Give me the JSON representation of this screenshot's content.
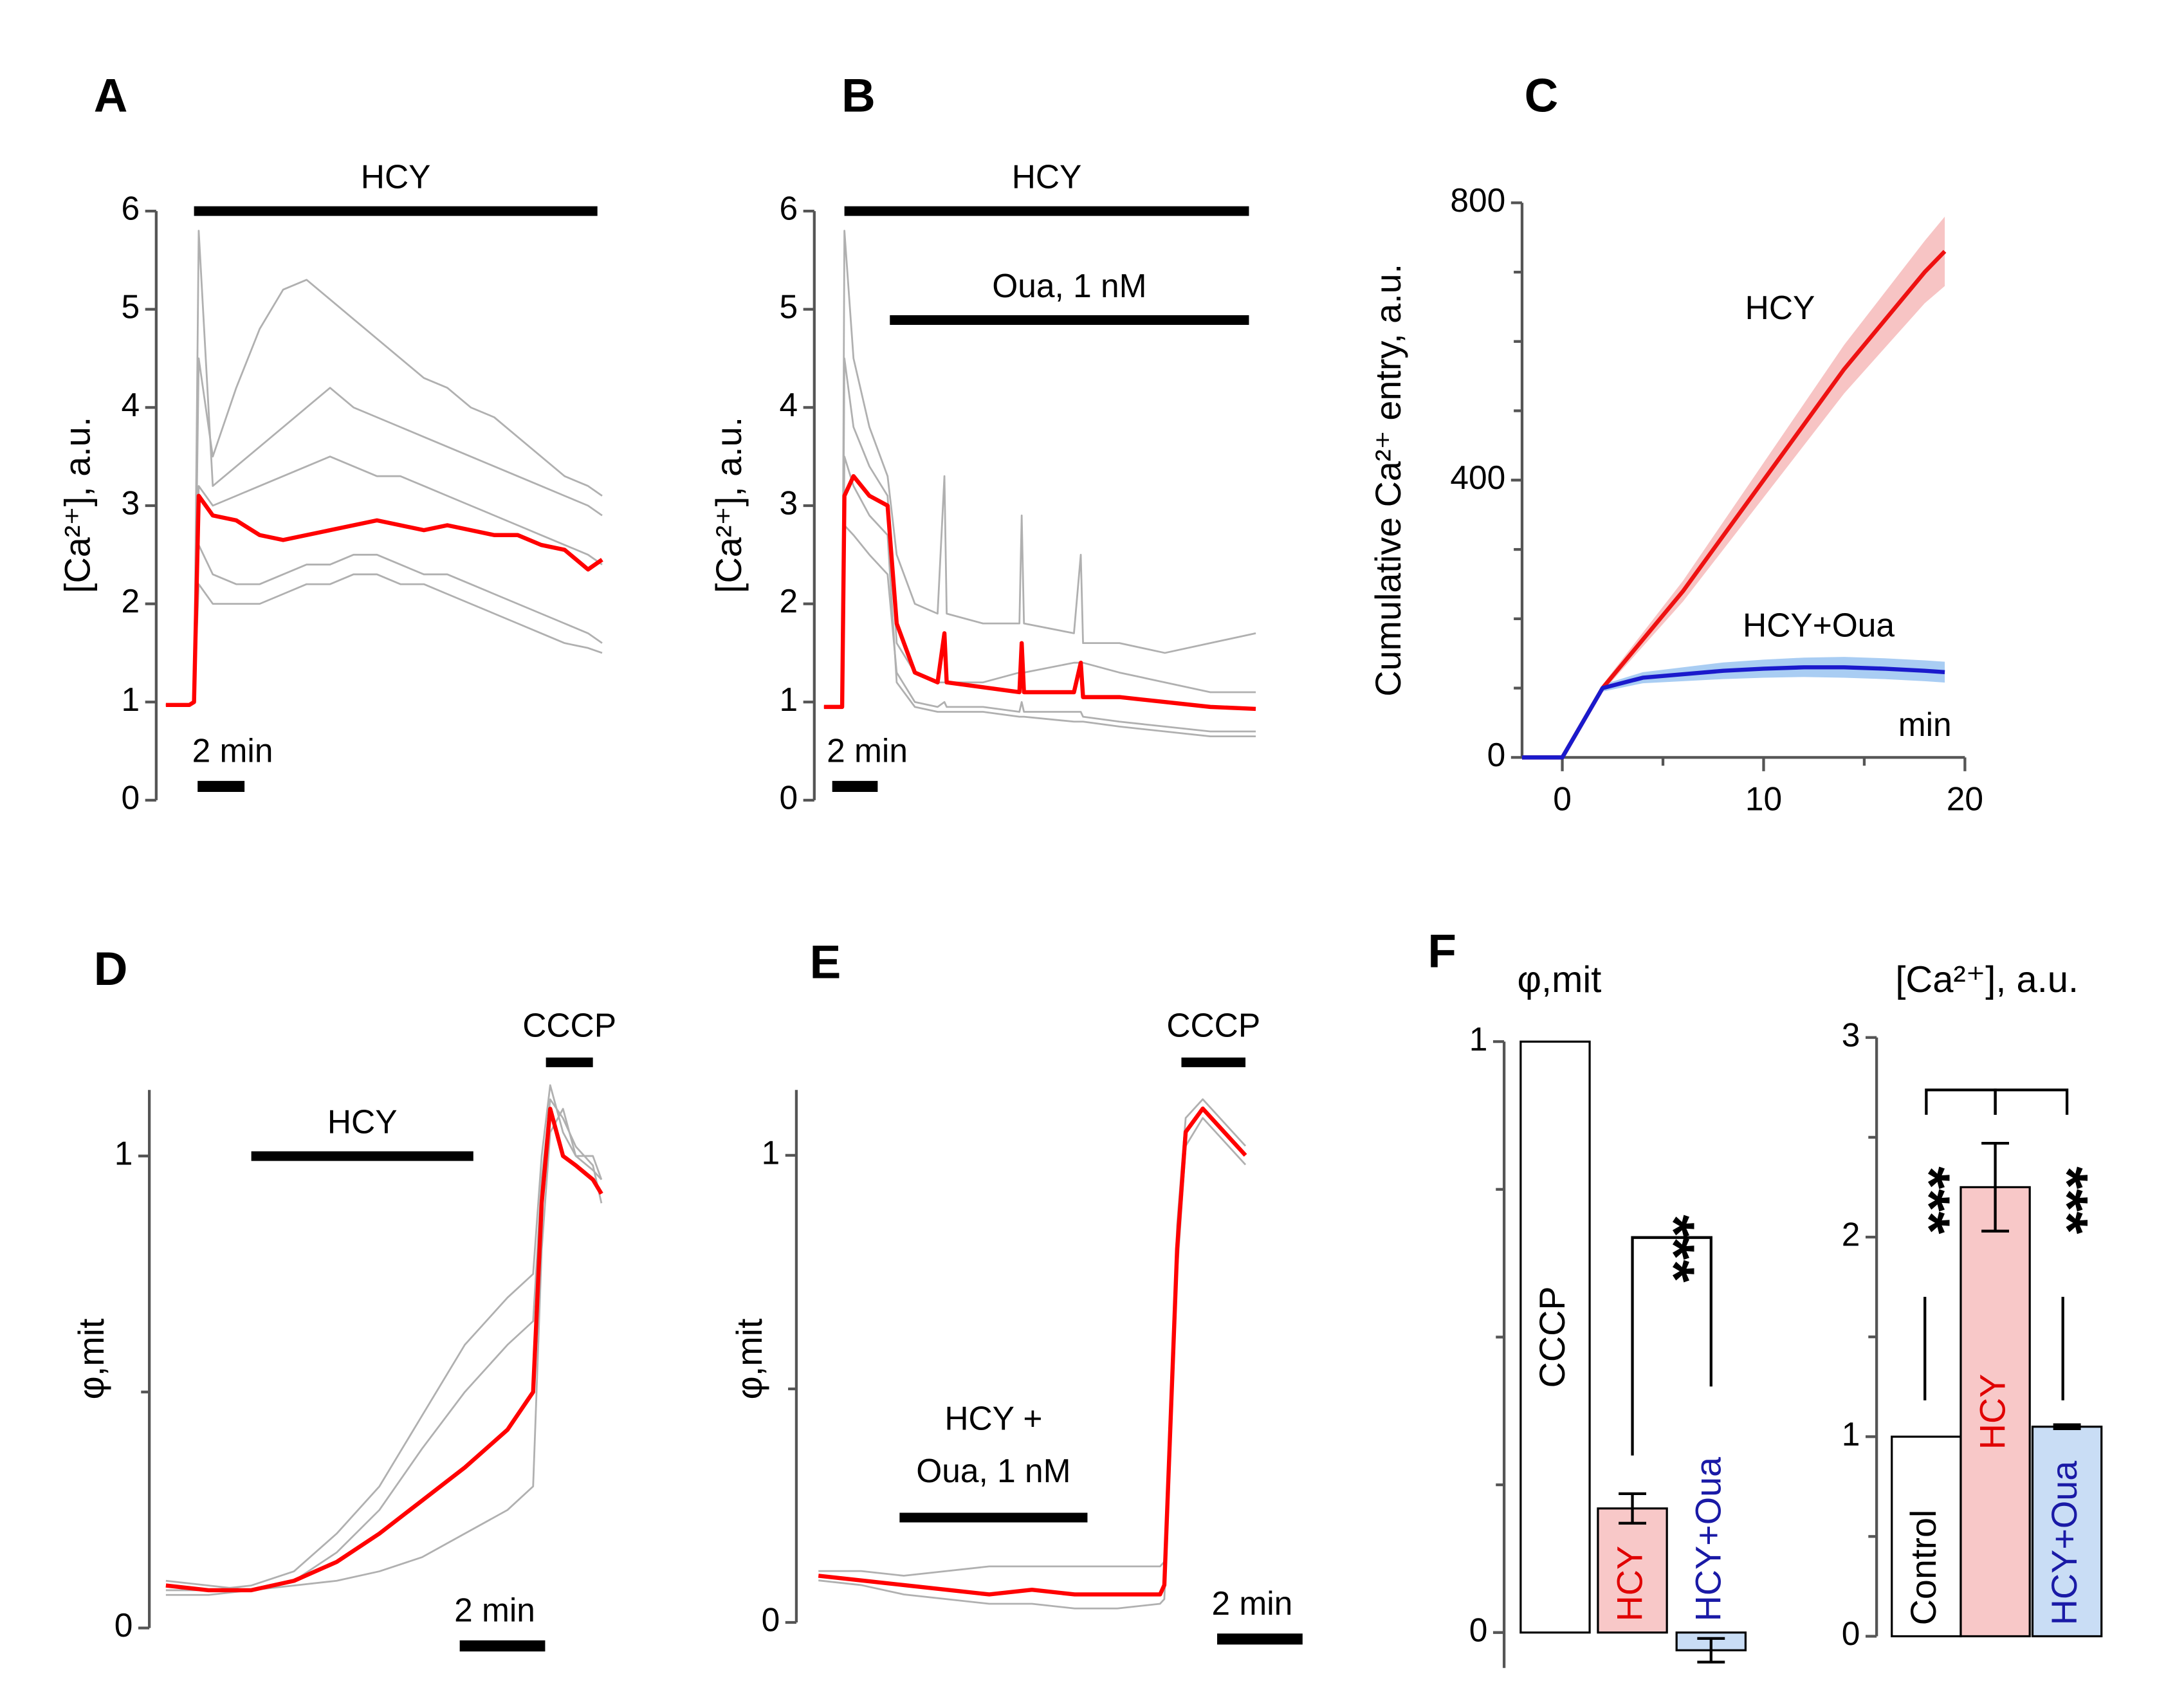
{
  "chart_data": [
    {
      "type": "line",
      "panel": "A",
      "ylabel": "[Ca²⁺], a.u.",
      "ylim": [
        0,
        6
      ],
      "yticks": [
        0,
        1,
        2,
        3,
        4,
        5,
        6
      ],
      "xlim": [
        0,
        19
      ],
      "x": [
        0,
        1,
        1.2,
        1.4,
        2,
        3,
        4,
        5,
        6,
        7,
        8,
        9,
        10,
        11,
        12,
        13,
        14,
        15,
        16,
        17,
        18,
        18.6
      ],
      "series": [
        {
          "color": "#b0b0b0",
          "values": [
            0.97,
            0.97,
            1.0,
            4.5,
            3.5,
            4.2,
            4.8,
            5.2,
            5.3,
            5.1,
            4.9,
            4.7,
            4.5,
            4.3,
            4.2,
            4.0,
            3.9,
            3.7,
            3.5,
            3.3,
            3.2,
            3.1
          ]
        },
        {
          "color": "#b0b0b0",
          "values": [
            0.97,
            0.97,
            1.0,
            5.8,
            3.2,
            3.4,
            3.6,
            3.8,
            4.0,
            4.2,
            4.0,
            3.9,
            3.8,
            3.7,
            3.6,
            3.5,
            3.4,
            3.3,
            3.2,
            3.1,
            3.0,
            2.9
          ]
        },
        {
          "color": "#b0b0b0",
          "values": [
            0.97,
            0.97,
            1.0,
            2.6,
            2.3,
            2.2,
            2.2,
            2.3,
            2.4,
            2.4,
            2.5,
            2.5,
            2.4,
            2.3,
            2.3,
            2.2,
            2.1,
            2.0,
            1.9,
            1.8,
            1.7,
            1.6
          ]
        },
        {
          "color": "#b0b0b0",
          "values": [
            0.97,
            0.97,
            1.0,
            2.2,
            2.0,
            2.0,
            2.0,
            2.1,
            2.2,
            2.2,
            2.3,
            2.3,
            2.2,
            2.2,
            2.1,
            2.0,
            1.9,
            1.8,
            1.7,
            1.6,
            1.55,
            1.5
          ]
        },
        {
          "color": "#b0b0b0",
          "values": [
            0.97,
            0.97,
            1.0,
            3.2,
            3.0,
            3.1,
            3.2,
            3.3,
            3.4,
            3.5,
            3.4,
            3.3,
            3.3,
            3.2,
            3.1,
            3.0,
            2.9,
            2.8,
            2.7,
            2.6,
            2.5,
            2.4
          ]
        },
        {
          "color": "#ff0000",
          "values": [
            0.97,
            0.97,
            1.0,
            3.1,
            2.9,
            2.85,
            2.7,
            2.65,
            2.7,
            2.75,
            2.8,
            2.85,
            2.8,
            2.75,
            2.8,
            2.75,
            2.7,
            2.7,
            2.6,
            2.55,
            2.35,
            2.45
          ]
        }
      ],
      "bars": [
        {
          "label": "HCY",
          "start": 1.2,
          "end": 18.4
        }
      ],
      "scalebar": {
        "label": "2 min",
        "length": 2
      }
    },
    {
      "type": "line",
      "panel": "B",
      "ylabel": "[Ca²⁺], a.u.",
      "ylim": [
        0,
        6
      ],
      "yticks": [
        0,
        1,
        2,
        3,
        4,
        5,
        6
      ],
      "xlim": [
        0,
        19
      ],
      "x": [
        0,
        0.8,
        0.9,
        1.3,
        2,
        2.8,
        3.2,
        4,
        5,
        5.3,
        5.4,
        7,
        8.6,
        8.7,
        8.8,
        11,
        11.3,
        11.4,
        13,
        15,
        17,
        19
      ],
      "series": [
        {
          "color": "#b0b0b0",
          "values": [
            0.95,
            0.95,
            5.8,
            4.5,
            3.8,
            3.3,
            2.5,
            2.0,
            1.9,
            3.3,
            1.9,
            1.8,
            1.8,
            2.9,
            1.8,
            1.7,
            2.5,
            1.6,
            1.6,
            1.5,
            1.6,
            1.7
          ]
        },
        {
          "color": "#b0b0b0",
          "values": [
            0.95,
            0.95,
            2.8,
            2.7,
            2.5,
            2.3,
            1.3,
            1.0,
            0.95,
            1.0,
            0.95,
            0.95,
            0.9,
            1.0,
            0.9,
            0.9,
            0.9,
            0.85,
            0.8,
            0.75,
            0.7,
            0.7
          ]
        },
        {
          "color": "#b0b0b0",
          "values": [
            0.95,
            0.95,
            4.5,
            3.8,
            3.4,
            3.1,
            1.6,
            1.3,
            1.2,
            1.2,
            1.2,
            1.2,
            1.3,
            1.3,
            1.3,
            1.4,
            1.4,
            1.4,
            1.3,
            1.2,
            1.1,
            1.1
          ]
        },
        {
          "color": "#b0b0b0",
          "values": [
            0.95,
            0.95,
            3.5,
            3.2,
            2.9,
            2.7,
            1.2,
            0.95,
            0.9,
            0.9,
            0.9,
            0.9,
            0.85,
            0.85,
            0.85,
            0.8,
            0.8,
            0.8,
            0.75,
            0.7,
            0.65,
            0.65
          ]
        },
        {
          "color": "#ff0000",
          "values": [
            0.95,
            0.95,
            3.1,
            3.3,
            3.1,
            3.0,
            1.8,
            1.3,
            1.2,
            1.7,
            1.2,
            1.15,
            1.1,
            1.6,
            1.1,
            1.1,
            1.4,
            1.05,
            1.05,
            1.0,
            0.95,
            0.93
          ]
        }
      ],
      "bars": [
        {
          "label": "HCY",
          "start": 0.9,
          "end": 18.7
        },
        {
          "label": "Oua, 1 nM",
          "start": 2.9,
          "end": 18.7
        }
      ],
      "scalebar": {
        "label": "2 min",
        "length": 2
      }
    },
    {
      "type": "line",
      "panel": "C",
      "ylabel": "Cumulative Ca²⁺ entry, a.u.",
      "xlabel": "min",
      "ylim": [
        0,
        800
      ],
      "yticks": [
        0,
        400,
        800
      ],
      "minor_yticks": [
        100,
        200,
        300,
        500,
        600,
        700
      ],
      "xlim": [
        -2,
        20
      ],
      "xticks": [
        0,
        10,
        20
      ],
      "minor_xticks": [
        5,
        15
      ],
      "x": [
        -2,
        0,
        2,
        4,
        6,
        8,
        10,
        12,
        14,
        16,
        18,
        19
      ],
      "series": [
        {
          "name": "HCY",
          "color": "#ee1111",
          "band_color": "#f7c4c4",
          "values": [
            0,
            0,
            100,
            170,
            240,
            320,
            400,
            480,
            560,
            630,
            700,
            730
          ],
          "error": [
            0,
            0,
            5,
            10,
            15,
            20,
            25,
            30,
            35,
            40,
            45,
            50
          ]
        },
        {
          "name": "HCY+Oua",
          "color": "#1a1acc",
          "band_color": "#a9cdf3",
          "values": [
            0,
            0,
            100,
            115,
            120,
            125,
            128,
            130,
            130,
            128,
            125,
            123
          ],
          "error": [
            0,
            0,
            5,
            8,
            10,
            12,
            13,
            14,
            15,
            15,
            15,
            15
          ]
        }
      ]
    },
    {
      "type": "line",
      "panel": "D",
      "ylabel": "φ,mit",
      "ylim": [
        0,
        1.14
      ],
      "yticks": [
        0,
        1
      ],
      "minor_yticks": [
        0.5
      ],
      "xlim": [
        0,
        10.5
      ],
      "x": [
        0,
        1,
        2,
        3,
        4,
        5,
        6,
        7,
        8,
        8.6,
        8.8,
        9.0,
        9.3,
        9.6,
        10,
        10.2
      ],
      "series": [
        {
          "color": "#b0b0b0",
          "values": [
            0.08,
            0.08,
            0.09,
            0.12,
            0.2,
            0.3,
            0.45,
            0.6,
            0.7,
            0.75,
            1.0,
            1.15,
            1.05,
            1.0,
            1.0,
            0.95
          ]
        },
        {
          "color": "#b0b0b0",
          "values": [
            0.1,
            0.09,
            0.08,
            0.09,
            0.1,
            0.12,
            0.15,
            0.2,
            0.25,
            0.3,
            0.8,
            1.05,
            1.1,
            1.0,
            0.97,
            0.95
          ]
        },
        {
          "color": "#b0b0b0",
          "values": [
            0.07,
            0.07,
            0.08,
            0.1,
            0.16,
            0.25,
            0.38,
            0.5,
            0.6,
            0.65,
            0.95,
            1.12,
            1.08,
            1.02,
            0.98,
            0.9
          ]
        },
        {
          "color": "#ff0000",
          "values": [
            0.09,
            0.08,
            0.08,
            0.1,
            0.14,
            0.2,
            0.27,
            0.34,
            0.42,
            0.5,
            0.9,
            1.1,
            1.0,
            0.98,
            0.95,
            0.92
          ]
        }
      ],
      "bars": [
        {
          "label": "HCY",
          "start": 2.0,
          "end": 7.2
        },
        {
          "label": "CCCP",
          "start": 8.9,
          "end": 10.0
        }
      ],
      "scalebar": {
        "label": "2 min",
        "length": 2
      }
    },
    {
      "type": "line",
      "panel": "E",
      "ylabel": "φ,mit",
      "ylim": [
        0,
        1.14
      ],
      "yticks": [
        0,
        1
      ],
      "minor_yticks": [
        0.5
      ],
      "xlim": [
        0,
        10.5
      ],
      "x": [
        0,
        1,
        2,
        3,
        4,
        5,
        6,
        7,
        8,
        8.1,
        8.4,
        8.6,
        9,
        9.5,
        10
      ],
      "series": [
        {
          "color": "#b0b0b0",
          "values": [
            0.11,
            0.11,
            0.1,
            0.11,
            0.12,
            0.12,
            0.12,
            0.12,
            0.12,
            0.13,
            0.85,
            1.08,
            1.12,
            1.07,
            1.02
          ]
        },
        {
          "color": "#b0b0b0",
          "values": [
            0.09,
            0.08,
            0.06,
            0.05,
            0.04,
            0.04,
            0.03,
            0.03,
            0.04,
            0.05,
            0.75,
            1.02,
            1.08,
            1.03,
            0.98
          ]
        },
        {
          "color": "#ff0000",
          "values": [
            0.1,
            0.09,
            0.08,
            0.07,
            0.06,
            0.07,
            0.06,
            0.06,
            0.06,
            0.08,
            0.8,
            1.05,
            1.1,
            1.05,
            1.0
          ]
        }
      ],
      "bars": [
        {
          "lines": [
            "HCY +",
            "Oua, 1 nM"
          ],
          "start": 1.9,
          "end": 6.3
        },
        {
          "label": "CCCP",
          "start": 8.5,
          "end": 10.0
        }
      ],
      "scalebar": {
        "label": "2 min",
        "length": 2
      }
    },
    {
      "type": "bar",
      "panel": "F",
      "title": "φ,mit",
      "ylim": [
        -0.06,
        1
      ],
      "yticks": [
        0,
        1
      ],
      "minor_yticks": [
        0.25,
        0.5,
        0.75
      ],
      "categories": [
        "CCCP",
        "HCY",
        "HCY+Oua"
      ],
      "values": [
        1,
        0.21,
        -0.03
      ],
      "errors": [
        null,
        0.025,
        0.02
      ],
      "bar_colors": [
        "#ffffff",
        "#f8c8c8",
        "#c9ddf5"
      ],
      "label_colors": [
        "#000000",
        "#e00000",
        "#1a1aa6"
      ],
      "significance": [
        {
          "label": "***",
          "from": 1,
          "to": 2
        }
      ]
    },
    {
      "type": "bar",
      "title": "[Ca²⁺], a.u.",
      "ylim": [
        0,
        3
      ],
      "yticks": [
        0,
        1,
        2,
        3
      ],
      "minor_yticks": [
        0.5,
        1.5,
        2.5
      ],
      "categories": [
        "Control",
        "HCY",
        "HCY+Oua"
      ],
      "values": [
        1,
        2.25,
        1.05
      ],
      "errors": [
        null,
        0.22,
        0.01
      ],
      "bar_colors": [
        "#ffffff",
        "#f8c8c8",
        "#c9ddf5"
      ],
      "label_colors": [
        "#000000",
        "#e00000",
        "#1a1aa6"
      ],
      "significance": [
        {
          "label": "***",
          "from": 0,
          "to": 1
        },
        {
          "label": "***",
          "from": 1,
          "to": 2
        }
      ]
    }
  ]
}
